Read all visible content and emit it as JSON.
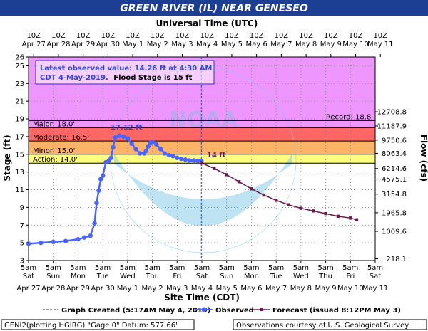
{
  "title": "GREEN RIVER (IL) NEAR GENESEO",
  "top_axis_title": "Universal Time (UTC)",
  "bottom_axis_title": "Site Time (CDT)",
  "colors": {
    "title_bg": "#1c3f94",
    "major": "#e040fb",
    "moderate": "#ff3333",
    "minor": "#ff9933",
    "action": "#ffff55",
    "observed": "#4a64ff",
    "forecast": "#6a1b4d"
  },
  "info_box": {
    "line1": "Latest observed value: 14.26 ft at 4:30 AM",
    "line2a": "CDT 4-May-2019.",
    "line2b": "Flood Stage is 15 ft"
  },
  "peak_label": "17.12 ft",
  "forecast_label": "14 ft",
  "watermark": {
    "top": "NATIONAL OCEANIC AND ATMOSPHERIC ADMINISTRATION",
    "bottom": "U.S. DEPARTMENT OF COMMERCE",
    "center": "NOAA"
  },
  "legend": {
    "created": "Graph Created (5:17AM May 4, 2019)",
    "observed": "Observed",
    "forecast": "Forecast (issued 8:12PM May 3)"
  },
  "footer": {
    "left": "GENI2(plotting HGIRG) \"Gage 0\" Datum: 577.66'",
    "right": "Observations courtesy of U.S. Geological Survey"
  },
  "chart_data": {
    "type": "line",
    "title": "GREEN RIVER (IL) NEAR GENESEO",
    "xlabel": "Site Time (CDT)",
    "ylabel": "Stage (ft)",
    "y2label": "Flow (cfs)",
    "ylim": [
      3,
      26
    ],
    "xlim_hours_from_apr27_5am": [
      0,
      336
    ],
    "y_ticks": [
      3,
      5,
      7,
      9,
      11,
      13,
      15,
      17,
      19,
      21,
      23,
      25,
      26
    ],
    "y2_ticks": [
      {
        "stage": 3.2,
        "label": "218.1"
      },
      {
        "stage": 6.3,
        "label": "1009.6"
      },
      {
        "stage": 8.4,
        "label": "1965.8"
      },
      {
        "stage": 10.5,
        "label": "3154.8"
      },
      {
        "stage": 12.2,
        "label": "4575.1"
      },
      {
        "stage": 13.4,
        "label": "6214.6"
      },
      {
        "stage": 15.1,
        "label": "8063.4"
      },
      {
        "stage": 16.6,
        "label": "9750.6"
      },
      {
        "stage": 18.2,
        "label": "11187.9"
      },
      {
        "stage": 19.8,
        "label": "12708.8"
      }
    ],
    "bottom_ticks": [
      {
        "date": "Apr 27",
        "day": "Sat"
      },
      {
        "date": "Apr 28",
        "day": "Sun"
      },
      {
        "date": "Apr 29",
        "day": "Mon"
      },
      {
        "date": "Apr 30",
        "day": "Tue"
      },
      {
        "date": "May 1",
        "day": "Wed"
      },
      {
        "date": "May 2",
        "day": "Thu"
      },
      {
        "date": "May 3",
        "day": "Fri"
      },
      {
        "date": "May 4",
        "day": "Sat"
      },
      {
        "date": "May 5",
        "day": "Sun"
      },
      {
        "date": "May 6",
        "day": "Mon"
      },
      {
        "date": "May 7",
        "day": "Tue"
      },
      {
        "date": "May 8",
        "day": "Wed"
      },
      {
        "date": "May 9",
        "day": "Thu"
      },
      {
        "date": "May 10",
        "day": "Fri"
      },
      {
        "date": "May 11",
        "day": "Sat"
      }
    ],
    "bottom_tick_time": "5am",
    "top_tick_time": "10Z",
    "top_ticks": [
      "Apr 27",
      "Apr 28",
      "Apr 29",
      "Apr 30",
      "May 1",
      "May 2",
      "May 3",
      "May 4",
      "May 5",
      "May 6",
      "May 7",
      "May 8",
      "May 9",
      "May 10",
      "May 11"
    ],
    "thresholds": [
      {
        "name": "Major",
        "label": "Major: 18.0'",
        "value": 18.0
      },
      {
        "name": "Moderate",
        "label": "Moderate: 16.5'",
        "value": 16.5
      },
      {
        "name": "Minor",
        "label": "Minor: 15.0'",
        "value": 15.0
      },
      {
        "name": "Action",
        "label": "Action: 14.0'",
        "value": 14.0
      }
    ],
    "record": {
      "label": "Record: 18.8'",
      "value": 18.8
    },
    "now_hours": 167.5,
    "series": [
      {
        "name": "Observed",
        "x_hours": [
          0,
          12,
          24,
          36,
          48,
          54,
          60,
          64,
          66,
          68,
          70,
          72,
          75,
          78,
          80,
          82,
          84,
          88,
          92,
          96,
          100,
          104,
          108,
          112,
          114,
          116,
          118,
          120,
          124,
          128,
          132,
          136,
          140,
          144,
          148,
          152,
          156,
          160,
          164,
          167.5
        ],
        "y_stage": [
          4.9,
          5.0,
          5.1,
          5.2,
          5.4,
          5.6,
          5.8,
          7.2,
          9.5,
          10.9,
          12.2,
          12.6,
          14.1,
          14.3,
          14.6,
          15.8,
          16.9,
          17.1,
          17.0,
          16.8,
          16.2,
          15.6,
          15.1,
          15.1,
          15.4,
          15.9,
          16.3,
          16.4,
          16.1,
          15.6,
          15.1,
          14.9,
          14.8,
          14.6,
          14.5,
          14.4,
          14.3,
          14.3,
          14.26,
          14.26
        ]
      },
      {
        "name": "Forecast (issued 8:12PM May 3)",
        "x_hours": [
          168,
          180,
          192,
          204,
          216,
          228,
          240,
          252,
          264,
          276,
          288,
          300,
          312,
          318
        ],
        "y_stage": [
          14.0,
          13.4,
          12.7,
          11.9,
          11.1,
          10.4,
          9.8,
          9.3,
          8.9,
          8.6,
          8.3,
          8.0,
          7.8,
          7.6
        ]
      }
    ]
  }
}
